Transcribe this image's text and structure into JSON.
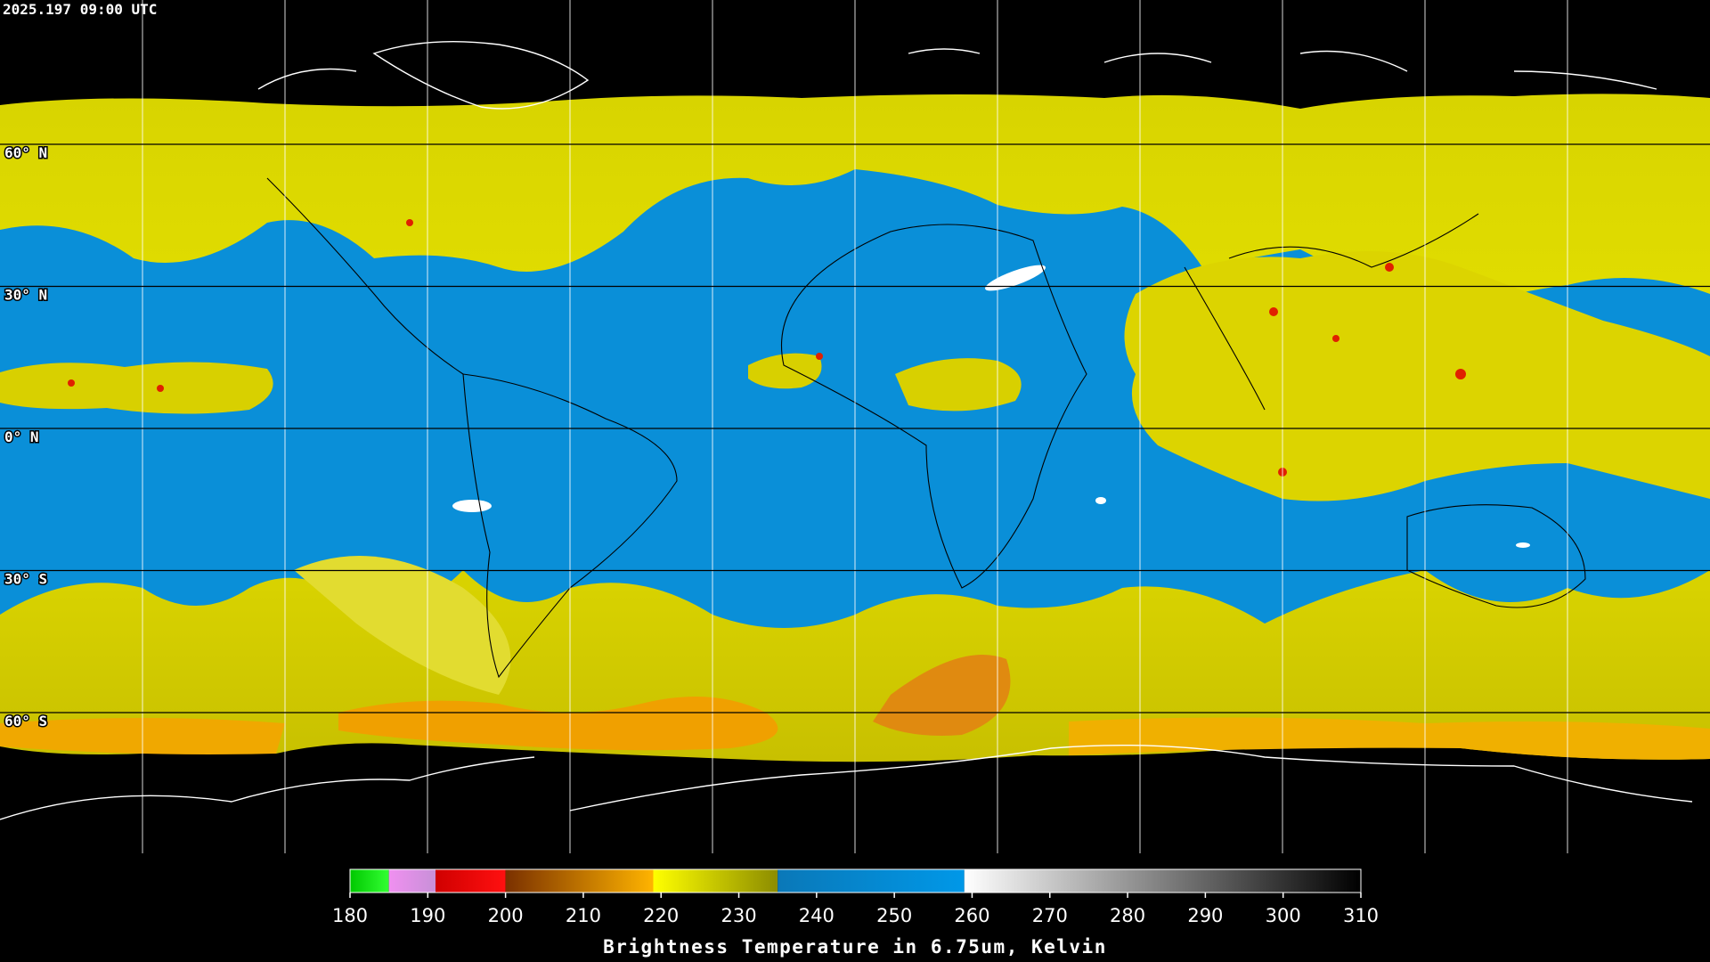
{
  "timestamp": "2025.197 09:00 UTC",
  "latitude_labels": [
    "60° N",
    "30° N",
    "0° N",
    "30° S",
    "60° S"
  ],
  "colorbar": {
    "range": [
      180,
      310
    ],
    "ticks": [
      180,
      190,
      200,
      210,
      220,
      230,
      240,
      250,
      260,
      270,
      280,
      290,
      300,
      310
    ],
    "title": "Brightness Temperature in 6.75um, Kelvin",
    "segments": [
      {
        "from": 180,
        "to": 185,
        "colors": [
          "#00c800",
          "#33ff33"
        ]
      },
      {
        "from": 185,
        "to": 191,
        "colors": [
          "#f090f0",
          "#c890d8"
        ]
      },
      {
        "from": 191,
        "to": 200,
        "colors": [
          "#d00000",
          "#ff1010"
        ]
      },
      {
        "from": 200,
        "to": 219,
        "colors": [
          "#7a3000",
          "#ffb400"
        ]
      },
      {
        "from": 219,
        "to": 235,
        "colors": [
          "#ffff00",
          "#8c8c00"
        ]
      },
      {
        "from": 235,
        "to": 259,
        "colors": [
          "#0a78b8",
          "#0098e8"
        ]
      },
      {
        "from": 259,
        "to": 310,
        "colors": [
          "#ffffff",
          "#000000"
        ]
      }
    ]
  }
}
